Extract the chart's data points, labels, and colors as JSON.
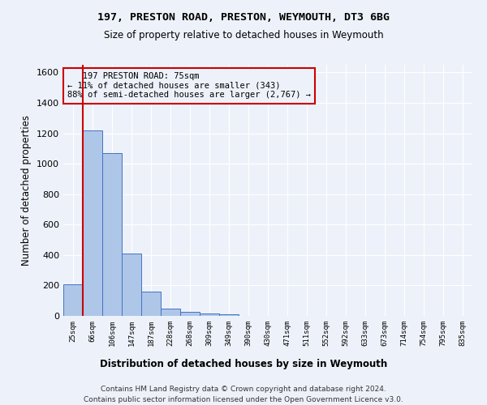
{
  "title1": "197, PRESTON ROAD, PRESTON, WEYMOUTH, DT3 6BG",
  "title2": "Size of property relative to detached houses in Weymouth",
  "xlabel": "Distribution of detached houses by size in Weymouth",
  "ylabel": "Number of detached properties",
  "footer1": "Contains HM Land Registry data © Crown copyright and database right 2024.",
  "footer2": "Contains public sector information licensed under the Open Government Licence v3.0.",
  "annotation_line1": "   197 PRESTON ROAD: 75sqm",
  "annotation_line2": "← 11% of detached houses are smaller (343)",
  "annotation_line3": "88% of semi-detached houses are larger (2,767) →",
  "bar_color": "#aec6e8",
  "bar_edge_color": "#4472c4",
  "highlight_color": "#cc0000",
  "categories": [
    "25sqm",
    "66sqm",
    "106sqm",
    "147sqm",
    "187sqm",
    "228sqm",
    "268sqm",
    "309sqm",
    "349sqm",
    "390sqm",
    "430sqm",
    "471sqm",
    "511sqm",
    "552sqm",
    "592sqm",
    "633sqm",
    "673sqm",
    "714sqm",
    "754sqm",
    "795sqm",
    "835sqm"
  ],
  "values": [
    205,
    1220,
    1070,
    410,
    160,
    48,
    25,
    18,
    13,
    0,
    0,
    0,
    0,
    0,
    0,
    0,
    0,
    0,
    0,
    0,
    0
  ],
  "property_bar_index": 1,
  "ylim": [
    0,
    1650
  ],
  "yticks": [
    0,
    200,
    400,
    600,
    800,
    1000,
    1200,
    1400,
    1600
  ],
  "bg_color": "#edf2fa",
  "grid_color": "#ffffff"
}
